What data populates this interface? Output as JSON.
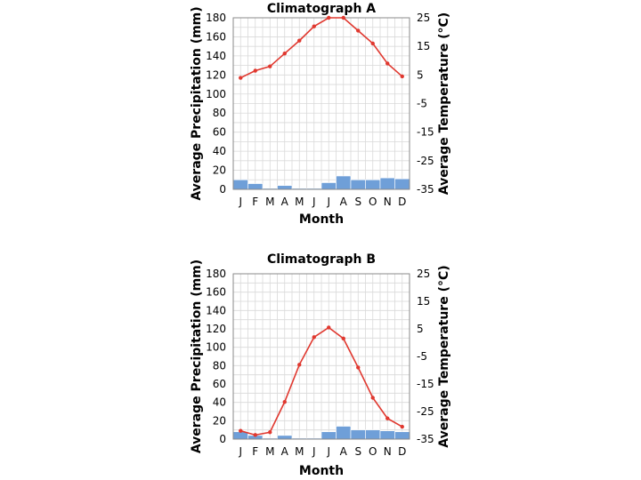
{
  "chart_data": [
    {
      "type": "climatograph",
      "title": "Climatograph A",
      "xlabel": "Month",
      "ylabel_left": "Average Precipitation (mm)",
      "ylabel_right": "Average Temperature (°C)",
      "categories": [
        "J",
        "F",
        "M",
        "A",
        "M",
        "J",
        "J",
        "A",
        "S",
        "O",
        "N",
        "D"
      ],
      "precip_ylim": [
        0,
        180
      ],
      "precip_ticks": [
        0,
        20,
        40,
        60,
        80,
        100,
        120,
        140,
        160,
        180
      ],
      "temp_ylim": [
        -35,
        25
      ],
      "temp_ticks": [
        25,
        15,
        5,
        -5,
        -15,
        -25,
        -35
      ],
      "grid": true,
      "series": [
        {
          "name": "Average Precipitation (mm)",
          "kind": "bar",
          "color": "#6f9fd8",
          "values": [
            10,
            6,
            1,
            4,
            1,
            1,
            7,
            14,
            10,
            10,
            12,
            11
          ]
        },
        {
          "name": "Average Temperature (°C)",
          "kind": "line",
          "color": "#e0382f",
          "values": [
            4.0,
            6.5,
            8.0,
            12.5,
            17.0,
            22.0,
            25.0,
            25.0,
            20.5,
            16.0,
            9.0,
            4.5
          ]
        }
      ]
    },
    {
      "type": "climatograph",
      "title": "Climatograph B",
      "xlabel": "Month",
      "ylabel_left": "Average Precipitation (mm)",
      "ylabel_right": "Average Temperature (°C)",
      "categories": [
        "J",
        "F",
        "M",
        "A",
        "M",
        "J",
        "J",
        "A",
        "S",
        "O",
        "N",
        "D"
      ],
      "precip_ylim": [
        0,
        180
      ],
      "precip_ticks": [
        0,
        20,
        40,
        60,
        80,
        100,
        120,
        140,
        160,
        180
      ],
      "temp_ylim": [
        -35,
        25
      ],
      "temp_ticks": [
        25,
        15,
        5,
        -5,
        -15,
        -25,
        -35
      ],
      "grid": true,
      "series": [
        {
          "name": "Average Precipitation (mm)",
          "kind": "bar",
          "color": "#6f9fd8",
          "values": [
            8,
            4,
            1,
            4,
            1,
            1,
            8,
            14,
            10,
            10,
            9,
            8
          ]
        },
        {
          "name": "Average Temperature (°C)",
          "kind": "line",
          "color": "#e0382f",
          "values": [
            -32.0,
            -33.5,
            -32.5,
            -21.5,
            -8.0,
            2.0,
            5.5,
            1.5,
            -9.0,
            -20.0,
            -27.5,
            -30.5
          ]
        }
      ]
    }
  ]
}
